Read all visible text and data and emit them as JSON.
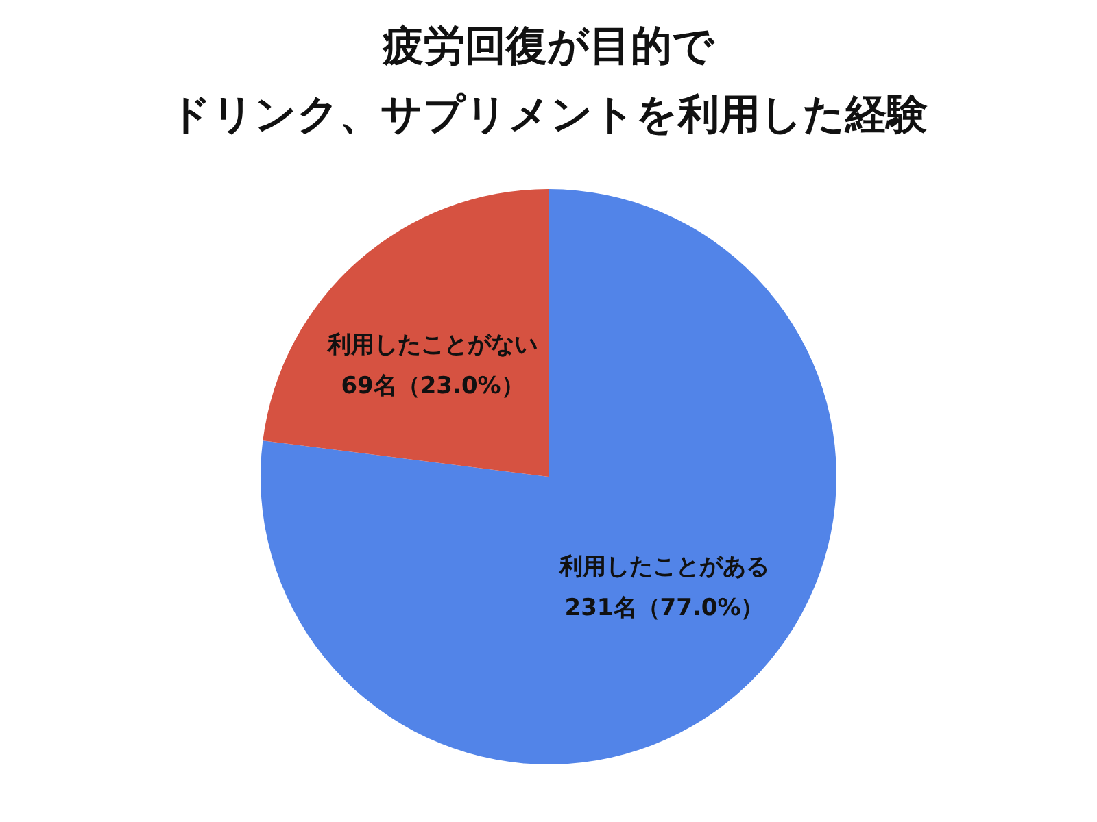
{
  "chart_data": {
    "type": "pie",
    "title": "疲労回復が目的でドリンク、サプリメントを利用した経験",
    "categories": [
      "利用したことがある",
      "利用したことがない"
    ],
    "values": [
      231,
      69
    ],
    "value_labels": [
      "231名（77.0%）",
      "69名（23.0%）"
    ],
    "colors": [
      "#5284e8",
      "#d65241"
    ],
    "legend": false
  }
}
